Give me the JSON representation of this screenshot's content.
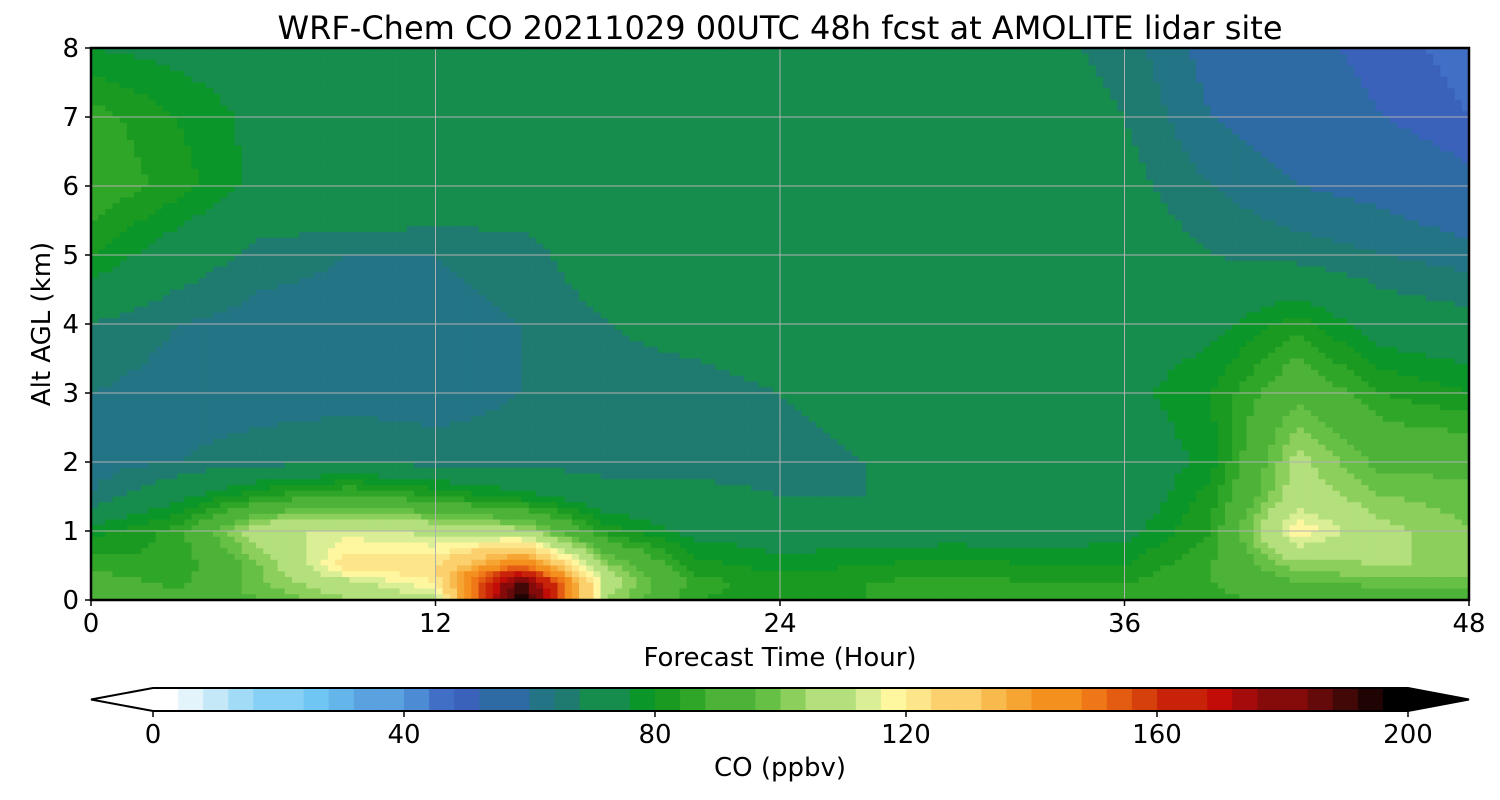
{
  "chart_data": {
    "type": "heatmap",
    "title": "WRF-Chem CO  20211029 00UTC 48h fcst at AMOLITE lidar site",
    "xlabel": "Forecast Time (Hour)",
    "ylabel": "Alt AGL (km)",
    "xlim": [
      0,
      48
    ],
    "ylim": [
      0,
      8
    ],
    "x_ticks": [
      0,
      12,
      24,
      36,
      48
    ],
    "y_ticks": [
      0,
      1,
      2,
      3,
      4,
      5,
      6,
      7,
      8
    ],
    "grid": true,
    "colorbar": {
      "label": "CO  (ppbv)",
      "range": [
        0,
        200
      ],
      "step": 4,
      "ticks": [
        0,
        40,
        80,
        120,
        160,
        200
      ],
      "extend": "both",
      "colors": [
        "#ffffff",
        "#e4f4fb",
        "#c4e8f7",
        "#a2dbf5",
        "#86d0f5",
        "#6fc6f3",
        "#63b5ea",
        "#5aa1e0",
        "#4d8bd4",
        "#416fc6",
        "#3b62bb",
        "#2e6aa4",
        "#237585",
        "#1f7a70",
        "#168d4c",
        "#0a9628",
        "#1a9a20",
        "#2fa628",
        "#4cb238",
        "#66c045",
        "#8ccf5c",
        "#b3e07c",
        "#d9ee95",
        "#fff6a0",
        "#fde58a",
        "#fbd06d",
        "#f8b94d",
        "#f6a532",
        "#f4901e",
        "#ef7718",
        "#e35c12",
        "#d6400d",
        "#c82209",
        "#c10c07",
        "#a30c0a",
        "#850b0b",
        "#650a0a",
        "#420707",
        "#200303",
        "#000000"
      ],
      "colors_by_value": [
        0,
        5.1,
        10.3,
        15.4,
        20.5,
        25.6,
        30.8,
        35.9,
        41,
        46.2,
        51.3,
        56.4,
        61.5,
        66.7,
        71.8,
        76.9,
        82.1,
        87.2,
        92.3,
        97.4,
        102.6,
        107.7,
        112.8,
        117.9,
        123.1,
        128.2,
        133.3,
        138.5,
        143.6,
        148.7,
        153.8,
        159,
        164.1,
        169.2,
        174.4,
        179.5,
        184.6,
        189.7,
        194.9,
        200
      ],
      "under_color": "#ffffff",
      "over_color": "#000000"
    },
    "x": [
      0,
      3,
      6,
      9,
      12,
      15,
      18,
      21,
      24,
      27,
      30,
      33,
      36,
      39,
      42,
      45,
      48
    ],
    "y": [
      0,
      0.25,
      0.5,
      1,
      1.5,
      2,
      3,
      4,
      5,
      6,
      7,
      8
    ],
    "values": [
      [
        94,
        92,
        96,
        104,
        110,
        200,
        104,
        84,
        82,
        84,
        86,
        84,
        84,
        86,
        90,
        88,
        88
      ],
      [
        92,
        86,
        100,
        110,
        120,
        190,
        108,
        86,
        82,
        84,
        86,
        84,
        84,
        88,
        96,
        98,
        98
      ],
      [
        86,
        84,
        100,
        124,
        124,
        150,
        102,
        82,
        78,
        80,
        82,
        80,
        80,
        88,
        102,
        104,
        104
      ],
      [
        78,
        86,
        110,
        114,
        110,
        106,
        82,
        74,
        72,
        72,
        72,
        72,
        74,
        84,
        120,
        106,
        100
      ],
      [
        64,
        74,
        84,
        90,
        84,
        78,
        70,
        70,
        68,
        68,
        68,
        68,
        70,
        82,
        108,
        100,
        98
      ],
      [
        62,
        64,
        66,
        68,
        66,
        66,
        66,
        66,
        66,
        68,
        68,
        68,
        70,
        78,
        106,
        94,
        94
      ],
      [
        64,
        62,
        62,
        62,
        62,
        64,
        66,
        66,
        68,
        70,
        70,
        70,
        74,
        80,
        94,
        84,
        80
      ],
      [
        68,
        64,
        62,
        62,
        62,
        64,
        68,
        70,
        72,
        72,
        72,
        72,
        72,
        74,
        82,
        72,
        70
      ],
      [
        80,
        72,
        66,
        64,
        64,
        66,
        72,
        72,
        72,
        72,
        72,
        72,
        72,
        68,
        66,
        64,
        62
      ],
      [
        88,
        82,
        74,
        76,
        74,
        72,
        76,
        76,
        72,
        72,
        72,
        72,
        70,
        64,
        60,
        58,
        54
      ],
      [
        86,
        80,
        74,
        76,
        74,
        72,
        74,
        76,
        72,
        72,
        72,
        72,
        68,
        60,
        56,
        52,
        48
      ],
      [
        76,
        74,
        72,
        72,
        72,
        70,
        70,
        74,
        72,
        70,
        70,
        70,
        66,
        58,
        54,
        50,
        46
      ]
    ]
  }
}
